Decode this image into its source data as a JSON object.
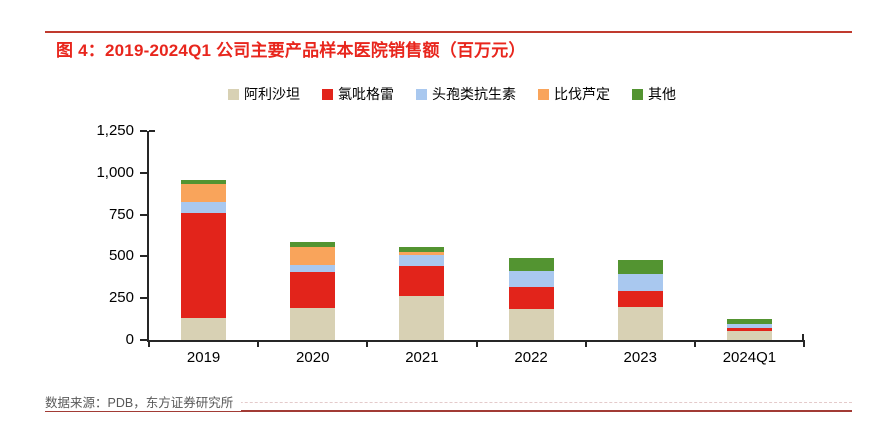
{
  "title": "图 4：2019-2024Q1 公司主要产品样本医院销售额（百万元）",
  "source": "数据来源：PDB，东方证券研究所",
  "colors": {
    "title_red": "#e8261d",
    "top_rule_red": "#c03a2e",
    "bottom_rule_red": "#a23b35",
    "axis_black": "#262626",
    "source_gray": "#595959"
  },
  "chart_data": {
    "type": "bar",
    "stacked": true,
    "title": "图 4：2019-2024Q1 公司主要产品样本医院销售额（百万元）",
    "xlabel": "",
    "ylabel": "",
    "categories": [
      "2019",
      "2020",
      "2021",
      "2022",
      "2023",
      "2024Q1"
    ],
    "series": [
      {
        "name": "阿利沙坦",
        "color": "#d8d1b4",
        "values": [
          130,
          190,
          265,
          185,
          200,
          55
        ]
      },
      {
        "name": "氯吡格雷",
        "color": "#e2241b",
        "values": [
          630,
          215,
          180,
          130,
          95,
          18
        ]
      },
      {
        "name": "头孢类抗生素",
        "color": "#a9c8ef",
        "values": [
          65,
          45,
          65,
          100,
          100,
          22
        ]
      },
      {
        "name": "比伐芦定",
        "color": "#f9a45b",
        "values": [
          110,
          105,
          15,
          0,
          0,
          0
        ]
      },
      {
        "name": "其他",
        "color": "#539431",
        "values": [
          20,
          30,
          30,
          75,
          85,
          28
        ]
      }
    ],
    "totals": [
      955,
      585,
      555,
      490,
      480,
      123
    ],
    "ylim": [
      0,
      1250
    ],
    "yticks": [
      0,
      250,
      500,
      750,
      1000,
      1250
    ],
    "ytick_labels": [
      "0",
      "250",
      "500",
      "750",
      "1,000",
      "1,250"
    ],
    "legend_position": "top-center",
    "grid": false
  }
}
